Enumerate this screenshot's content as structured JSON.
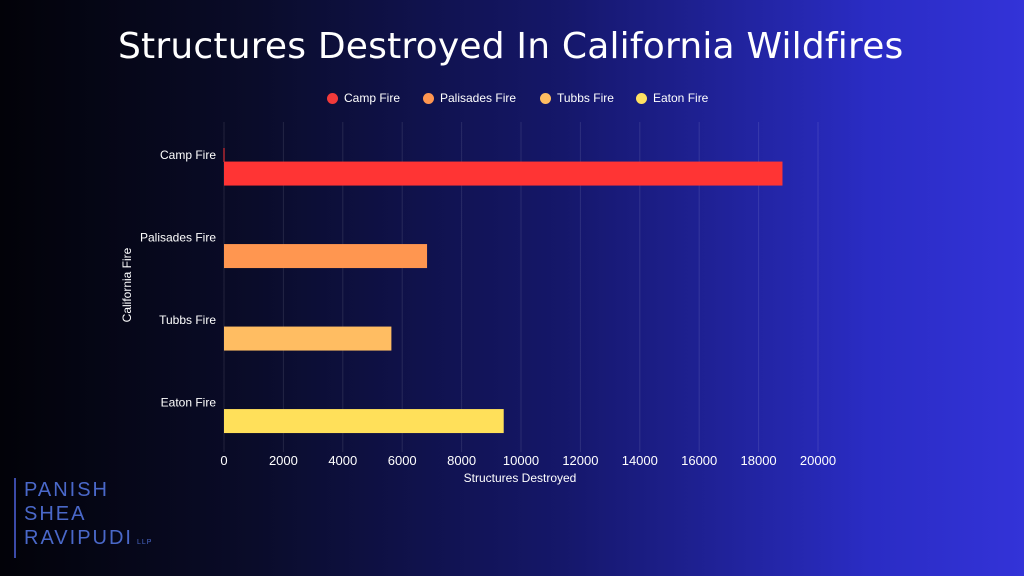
{
  "chart_data": {
    "type": "bar",
    "orientation": "horizontal",
    "title": "Structures Destroyed In California Wildfires",
    "xlabel": "Structures Destroyed",
    "ylabel": "California Fire",
    "categories": [
      "Camp Fire",
      "Palisades Fire",
      "Tubbs Fire",
      "Eaton Fire"
    ],
    "values": [
      18804,
      6837,
      5636,
      9418
    ],
    "xlim": [
      0,
      20000
    ],
    "x_ticks": [
      "0",
      "2000",
      "4000",
      "6000",
      "8000",
      "10000",
      "12000",
      "14000",
      "16000",
      "18000",
      "20000"
    ],
    "grid": "vertical",
    "legend_position": "top",
    "legend": [
      {
        "label": "Camp Fire",
        "color": "#f23a3a"
      },
      {
        "label": "Palisades Fire",
        "color": "#ff9650"
      },
      {
        "label": "Tubbs Fire",
        "color": "#ffbd62"
      },
      {
        "label": "Eaton Fire",
        "color": "#ffe162"
      }
    ],
    "bar_colors": [
      "#ff3434",
      "#ff9650",
      "#ffbd62",
      "#ffe05a"
    ]
  },
  "logo": {
    "lines": [
      "PANISH",
      "SHEA",
      "RAVIPUDI"
    ],
    "suffix": "LLP",
    "color": "#4a68c9"
  }
}
